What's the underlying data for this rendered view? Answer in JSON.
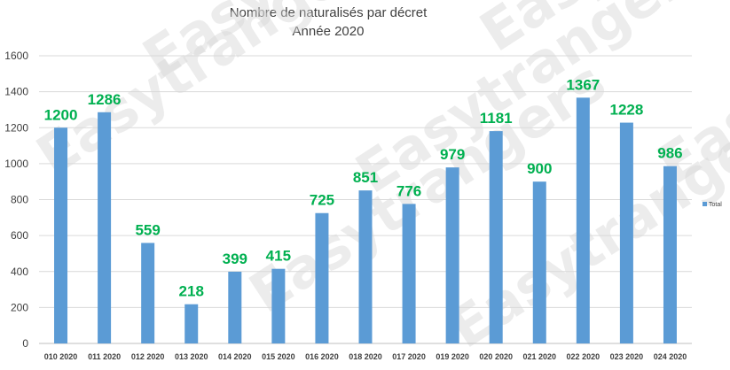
{
  "chart_data": {
    "type": "bar",
    "title": "Nombre de naturalisés par décret",
    "subtitle": "Année 2020",
    "categories": [
      "010 2020",
      "011 2020",
      "012 2020",
      "013 2020",
      "014 2020",
      "015 2020",
      "016 2020",
      "018 2020",
      "017 2020",
      "019 2020",
      "020 2020",
      "021 2020",
      "022 2020",
      "023 2020",
      "024 2020"
    ],
    "series": [
      {
        "name": "Total",
        "values": [
          1200,
          1286,
          559,
          218,
          399,
          415,
          725,
          851,
          776,
          979,
          1181,
          900,
          1367,
          1228,
          986
        ]
      }
    ],
    "ylim": [
      0,
      1600
    ],
    "yticks": [
      0,
      200,
      400,
      600,
      800,
      1000,
      1200,
      1400,
      1600
    ],
    "grid": true,
    "legend_position": "right",
    "bar_color": "#5b9bd5",
    "label_color": "#00b050",
    "watermark": "Easytrangers"
  }
}
